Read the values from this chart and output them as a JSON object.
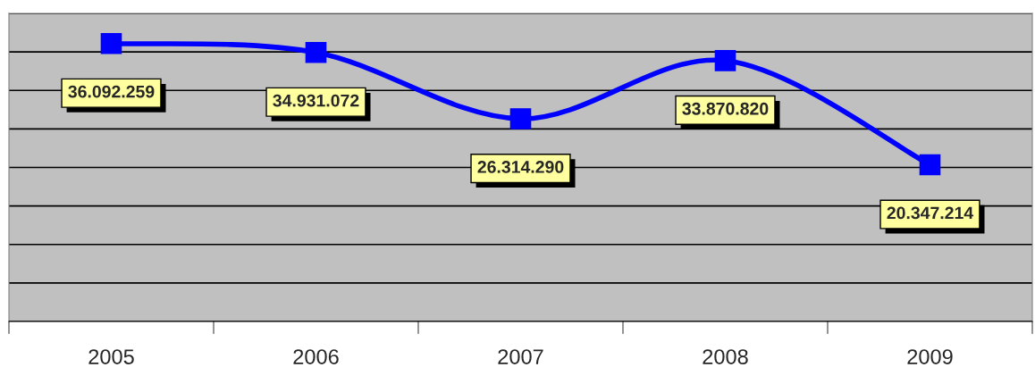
{
  "chart_data": {
    "type": "line",
    "categories": [
      "2005",
      "2006",
      "2007",
      "2008",
      "2009"
    ],
    "series": [
      {
        "color": "#0000ff",
        "values": [
          36092259,
          34931072,
          26314290,
          33870820,
          20347214
        ],
        "value_labels": [
          "36.092.259",
          "34.931.072",
          "26.314.290",
          "33.870.820",
          "20.347.214"
        ]
      }
    ],
    "ylim": [
      0,
      40000000
    ],
    "yticks": [
      {
        "value": 0,
        "label": null
      },
      {
        "value": 5000000,
        "label": null
      },
      {
        "value": 10000000,
        "label": null
      },
      {
        "value": 15000000,
        "label": null
      },
      {
        "value": 20000000,
        "label": null
      },
      {
        "value": 25000000,
        "label": null
      },
      {
        "value": 30000000,
        "label": null
      },
      {
        "value": 35000000,
        "label": null
      },
      {
        "value": 40000000,
        "label": null
      }
    ],
    "tick_labels": "x",
    "grid": "y",
    "marker": "square",
    "line_style": "solid",
    "legend": false
  }
}
